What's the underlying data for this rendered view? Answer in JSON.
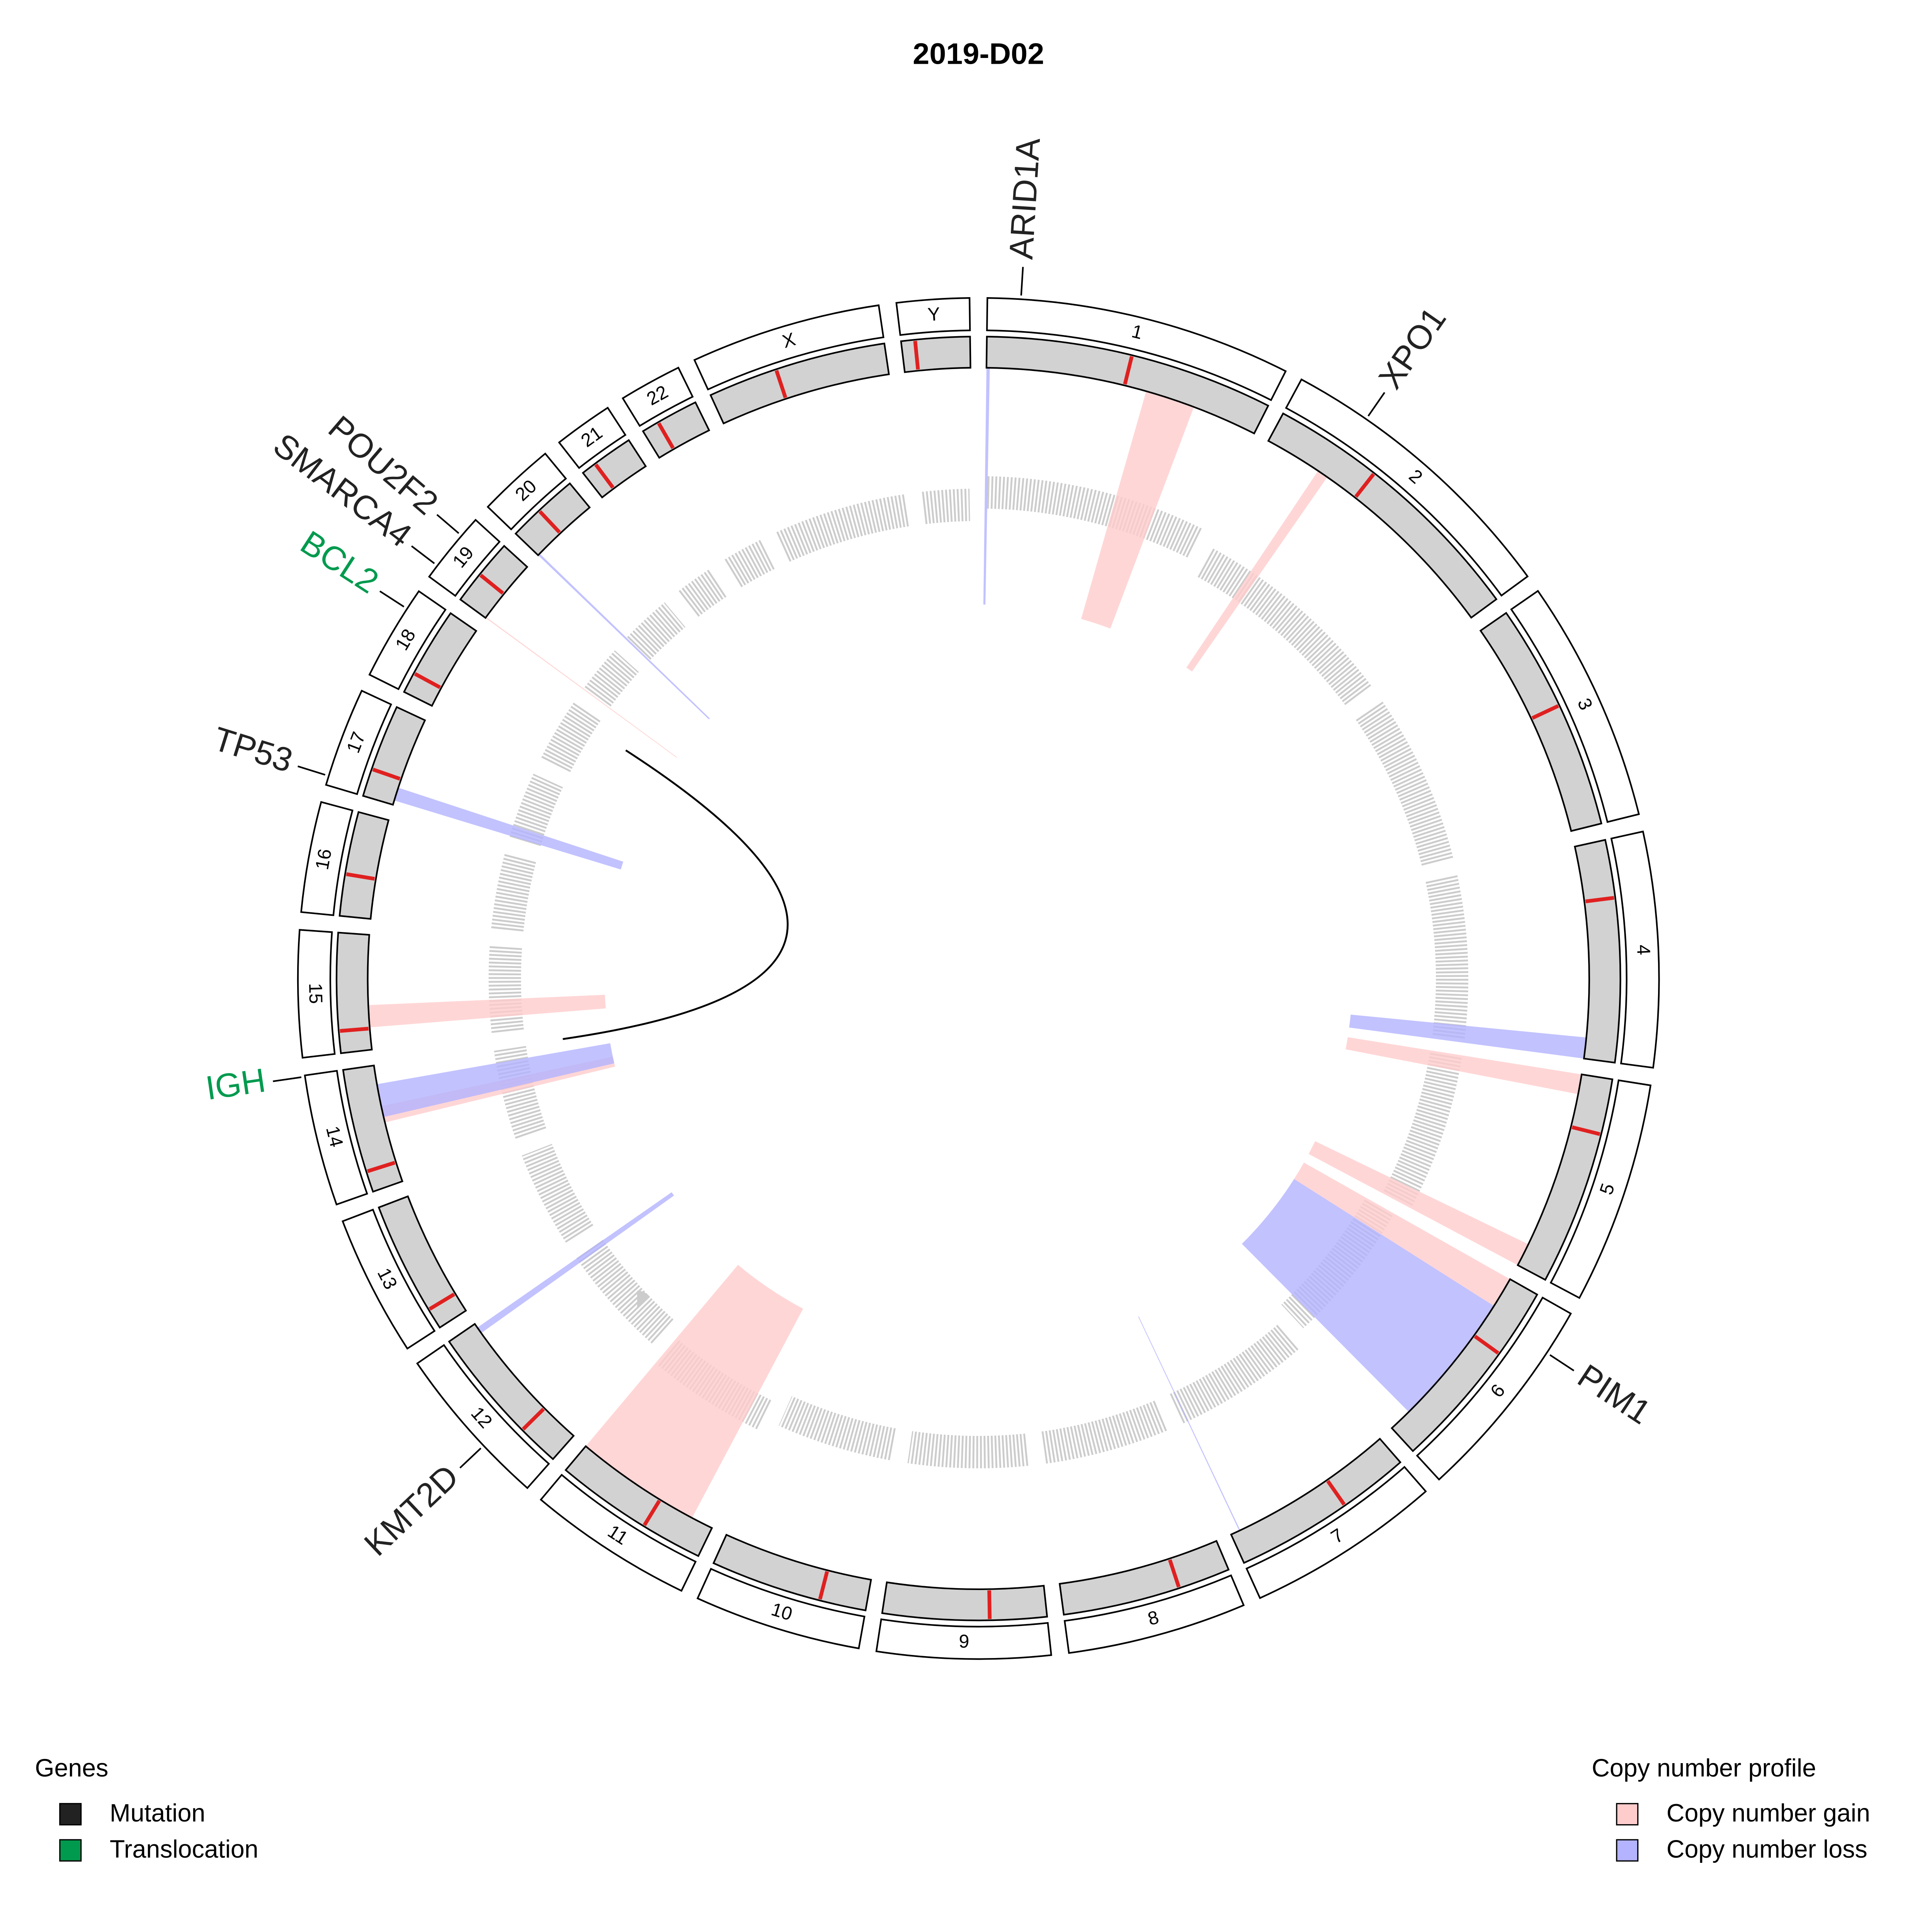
{
  "chart_data": {
    "type": "circos",
    "title": "2019-D02",
    "gene_legend": {
      "title": "Genes",
      "items": [
        {
          "label": "Mutation",
          "color": "#222222"
        },
        {
          "label": "Translocation",
          "color": "#009a4e"
        }
      ]
    },
    "cnv_legend": {
      "title": "Copy number profile",
      "items": [
        {
          "label": "Copy number gain",
          "color": "#ffcccc"
        },
        {
          "label": "Copy number loss",
          "color": "#b3b3ff"
        }
      ]
    },
    "chromosomes": [
      {
        "name": "1",
        "size": 249,
        "centromere": 125,
        "log2_ratio": 0.05,
        "genes": [
          {
            "label": "ARID1A",
            "pos": 27,
            "type": "Mutation"
          }
        ],
        "cnv": [
          {
            "type": "Copy number loss",
            "start": 0,
            "end": 3
          },
          {
            "type": "Copy number gain",
            "start": 145,
            "end": 190
          }
        ]
      },
      {
        "name": "2",
        "size": 243,
        "centromere": 93,
        "log2_ratio": 0,
        "genes": [
          {
            "label": "XPO1",
            "pos": 61,
            "type": "Mutation"
          }
        ],
        "cnv": [
          {
            "type": "Copy number gain",
            "start": 52,
            "end": 62
          }
        ]
      },
      {
        "name": "3",
        "size": 198,
        "centromere": 91,
        "log2_ratio": 0,
        "genes": [],
        "cnv": []
      },
      {
        "name": "4",
        "size": 191,
        "centromere": 50,
        "log2_ratio": 0,
        "genes": [],
        "cnv": [
          {
            "type": "Copy number loss",
            "start": 172,
            "end": 191
          }
        ]
      },
      {
        "name": "5",
        "size": 181,
        "centromere": 48,
        "log2_ratio": 0,
        "genes": [],
        "cnv": [
          {
            "type": "Copy number gain",
            "start": 0,
            "end": 18
          },
          {
            "type": "Copy number gain",
            "start": 160,
            "end": 181
          }
        ]
      },
      {
        "name": "6",
        "size": 171,
        "centromere": 60,
        "log2_ratio": -0.05,
        "genes": [
          {
            "label": "PIM1",
            "pos": 37,
            "type": "Mutation"
          }
        ],
        "cnv": [
          {
            "type": "Copy number gain",
            "start": 0,
            "end": 28
          },
          {
            "type": "Copy number loss",
            "start": 28,
            "end": 150
          }
        ]
      },
      {
        "name": "7",
        "size": 159,
        "centromere": 60,
        "log2_ratio": 0,
        "genes": [],
        "cnv": [
          {
            "type": "Copy number loss",
            "start": 150,
            "end": 151
          }
        ]
      },
      {
        "name": "8",
        "size": 146,
        "centromere": 45,
        "log2_ratio": 0,
        "genes": [],
        "cnv": []
      },
      {
        "name": "9",
        "size": 141,
        "centromere": 49,
        "log2_ratio": 0,
        "genes": [],
        "cnv": []
      },
      {
        "name": "10",
        "size": 136,
        "centromere": 40,
        "log2_ratio": 0,
        "genes": [],
        "cnv": []
      },
      {
        "name": "11",
        "size": 135,
        "centromere": 53,
        "log2_ratio": 0.05,
        "genes": [],
        "cnv": [
          {
            "type": "Copy number gain",
            "start": 20,
            "end": 135
          }
        ]
      },
      {
        "name": "12",
        "size": 134,
        "centromere": 36,
        "log2_ratio": 0,
        "genes": [
          {
            "label": "KMT2D",
            "pos": 49,
            "type": "Mutation"
          }
        ],
        "cnv": [
          {
            "type": "Copy number loss",
            "start": 124,
            "end": 130
          }
        ]
      },
      {
        "name": "13",
        "size": 115,
        "centromere": 18,
        "log2_ratio": 0,
        "genes": [],
        "cnv": []
      },
      {
        "name": "14",
        "size": 107,
        "centromere": 18,
        "log2_ratio": 0,
        "genes": [
          {
            "label": "IGH",
            "pos": 106,
            "type": "Translocation"
          }
        ],
        "cnv": [
          {
            "type": "Copy number gain",
            "start": 55,
            "end": 70
          },
          {
            "type": "Copy number loss",
            "start": 60,
            "end": 90
          }
        ]
      },
      {
        "name": "15",
        "size": 103,
        "centromere": 19,
        "log2_ratio": 0,
        "genes": [],
        "cnv": [
          {
            "type": "Copy number gain",
            "start": 20,
            "end": 40
          }
        ]
      },
      {
        "name": "16",
        "size": 90,
        "centromere": 36,
        "log2_ratio": 0,
        "genes": [],
        "cnv": []
      },
      {
        "name": "17",
        "size": 81,
        "centromere": 24,
        "log2_ratio": 0,
        "genes": [
          {
            "label": "TP53",
            "pos": 7.5,
            "type": "Mutation"
          }
        ],
        "cnv": [
          {
            "type": "Copy number loss",
            "start": 4,
            "end": 16
          }
        ]
      },
      {
        "name": "18",
        "size": 78,
        "centromere": 18,
        "log2_ratio": 0,
        "genes": [
          {
            "label": "BCL2",
            "pos": 61,
            "type": "Translocation"
          }
        ],
        "cnv": []
      },
      {
        "name": "19",
        "size": 59,
        "centromere": 27,
        "log2_ratio": 0,
        "genes": [
          {
            "label": "SMARCA4",
            "pos": 11,
            "type": "Mutation"
          },
          {
            "label": "POU2F2",
            "pos": 42,
            "type": "Mutation"
          }
        ],
        "cnv": [
          {
            "type": "Copy number gain",
            "start": 0,
            "end": 1
          }
        ]
      },
      {
        "name": "20",
        "size": 63,
        "centromere": 28,
        "log2_ratio": 0,
        "genes": [],
        "cnv": [
          {
            "type": "Copy number loss",
            "start": 0,
            "end": 2
          }
        ]
      },
      {
        "name": "21",
        "size": 48,
        "centromere": 13,
        "log2_ratio": 0,
        "genes": [],
        "cnv": []
      },
      {
        "name": "22",
        "size": 51,
        "centromere": 15,
        "log2_ratio": 0,
        "genes": [],
        "cnv": []
      },
      {
        "name": "X",
        "size": 155,
        "centromere": 60,
        "log2_ratio": 0,
        "genes": [],
        "cnv": []
      },
      {
        "name": "Y",
        "size": 59,
        "centromere": 12,
        "log2_ratio": 0,
        "genes": [],
        "cnv": []
      }
    ]
  }
}
